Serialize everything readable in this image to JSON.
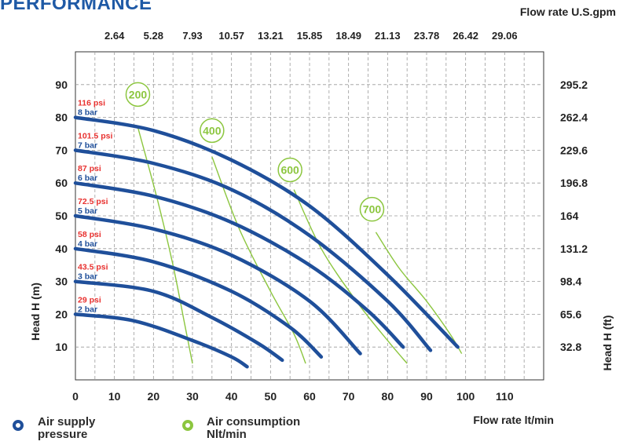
{
  "header": {
    "title": "PERFORMANCE"
  },
  "legend": [
    {
      "label": "Air supply pressure",
      "color": "#1f4f9a"
    },
    {
      "label": "Air consumption Nlt/min",
      "color": "#8cc63f"
    }
  ],
  "chart_data": {
    "type": "line",
    "xlabel": "Flow rate  lt/min",
    "ylabel": "Head H (m)",
    "top_xlabel": "Flow rate U.S.gpm",
    "right_ylabel": "Head H (ft)",
    "xlim": [
      0,
      120
    ],
    "ylim": [
      0,
      100
    ],
    "x_ticks": [
      "0",
      "10",
      "20",
      "30",
      "40",
      "50",
      "60",
      "70",
      "80",
      "90",
      "100",
      "110"
    ],
    "y_ticks": [
      "10",
      "20",
      "30",
      "40",
      "50",
      "60",
      "70",
      "80",
      "90"
    ],
    "top_ticks": [
      "2.64",
      "5.28",
      "7.93",
      "10.57",
      "13.21",
      "15.85",
      "18.49",
      "21.13",
      "23.78",
      "26.42",
      "29.06"
    ],
    "right_ticks": [
      "32.8",
      "65.6",
      "98.4",
      "131.2",
      "164",
      "196.8",
      "229.6",
      "262.4",
      "295.2"
    ],
    "grid": true,
    "pressure_color": "#1f4f9a",
    "air_color": "#8cc63f",
    "psi_color": "#e8312f",
    "series": [
      {
        "name": "8 bar",
        "psi": "116 psi",
        "x": [
          0,
          20,
          40,
          60,
          80,
          98
        ],
        "y": [
          80,
          76,
          67,
          53,
          32,
          10
        ]
      },
      {
        "name": "7 bar",
        "psi": "101.5 psi",
        "x": [
          0,
          20,
          40,
          60,
          80,
          91
        ],
        "y": [
          70,
          66,
          58,
          44,
          24,
          9
        ]
      },
      {
        "name": "6 bar",
        "psi": "87 psi",
        "x": [
          0,
          20,
          40,
          60,
          75,
          84
        ],
        "y": [
          60,
          56,
          48,
          35,
          21,
          10
        ]
      },
      {
        "name": "5 bar",
        "psi": "72.5 psi",
        "x": [
          0,
          20,
          40,
          60,
          73
        ],
        "y": [
          50,
          46,
          38,
          24,
          8
        ]
      },
      {
        "name": "4 bar",
        "psi": "58 psi",
        "x": [
          0,
          20,
          40,
          55,
          63
        ],
        "y": [
          40,
          36,
          27,
          16,
          7
        ]
      },
      {
        "name": "3 bar",
        "psi": "43.5 psi",
        "x": [
          0,
          20,
          35,
          47,
          53
        ],
        "y": [
          30,
          27,
          19,
          11,
          6
        ]
      },
      {
        "name": "2 bar",
        "psi": "29 psi",
        "x": [
          0,
          15,
          30,
          40,
          44
        ],
        "y": [
          20,
          18,
          12,
          7,
          4
        ]
      }
    ],
    "air_consumption": [
      {
        "name": "200",
        "x": [
          16,
          21,
          25,
          28,
          30
        ],
        "y": [
          77,
          55,
          35,
          17,
          5
        ]
      },
      {
        "name": "400",
        "x": [
          35,
          42,
          50,
          56,
          59
        ],
        "y": [
          68,
          46,
          27,
          14,
          5
        ]
      },
      {
        "name": "600",
        "x": [
          56,
          63,
          72,
          80,
          85
        ],
        "y": [
          58,
          40,
          24,
          12,
          5
        ]
      },
      {
        "name": "700",
        "x": [
          77,
          83,
          90,
          96,
          99
        ],
        "y": [
          45,
          34,
          24,
          14,
          8
        ]
      }
    ],
    "air_label_pos": [
      {
        "name": "200",
        "x": 16,
        "y": 87
      },
      {
        "name": "400",
        "x": 35,
        "y": 76
      },
      {
        "name": "600",
        "x": 55,
        "y": 64
      },
      {
        "name": "700",
        "x": 76,
        "y": 52
      }
    ]
  }
}
